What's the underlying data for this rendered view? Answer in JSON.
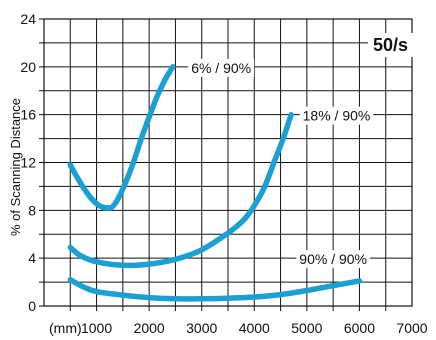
{
  "chart_data": {
    "type": "line",
    "rate_label": "50/s",
    "xlabel": "",
    "x_unit_label": "(mm)",
    "ylabel": "% of Scanning Distance",
    "xlim": [
      0,
      7000
    ],
    "ylim": [
      0,
      24
    ],
    "x_ticks": [
      1000,
      2000,
      3000,
      4000,
      5000,
      6000,
      7000
    ],
    "y_ticks": [
      0,
      4,
      8,
      12,
      16,
      20,
      24
    ],
    "x_minor_step": 500,
    "y_minor_step": 2,
    "grid": true,
    "line_color": "#1ba0d4",
    "series": [
      {
        "name": "6% / 90%",
        "x": [
          500,
          600,
          750,
          900,
          1050,
          1200,
          1300,
          1400,
          1550,
          1700,
          1850,
          2000,
          2150,
          2300,
          2450
        ],
        "y": [
          11.8,
          11.0,
          9.9,
          9.0,
          8.4,
          8.2,
          8.3,
          8.9,
          10.3,
          12.0,
          14.0,
          15.8,
          17.5,
          18.9,
          20.0
        ]
      },
      {
        "name": "18% / 90%",
        "x": [
          500,
          700,
          1000,
          1500,
          2000,
          2500,
          3000,
          3500,
          3800,
          4000,
          4200,
          4400,
          4550,
          4700
        ],
        "y": [
          4.9,
          4.2,
          3.7,
          3.4,
          3.5,
          3.9,
          4.7,
          6.1,
          7.2,
          8.4,
          10.0,
          12.3,
          14.0,
          16.0
        ]
      },
      {
        "name": "90% / 90%",
        "x": [
          500,
          750,
          1000,
          1500,
          2000,
          2500,
          3000,
          3500,
          4000,
          4500,
          5000,
          5500,
          6000
        ],
        "y": [
          2.2,
          1.6,
          1.2,
          0.9,
          0.7,
          0.6,
          0.6,
          0.65,
          0.75,
          0.95,
          1.3,
          1.7,
          2.1
        ]
      }
    ]
  }
}
